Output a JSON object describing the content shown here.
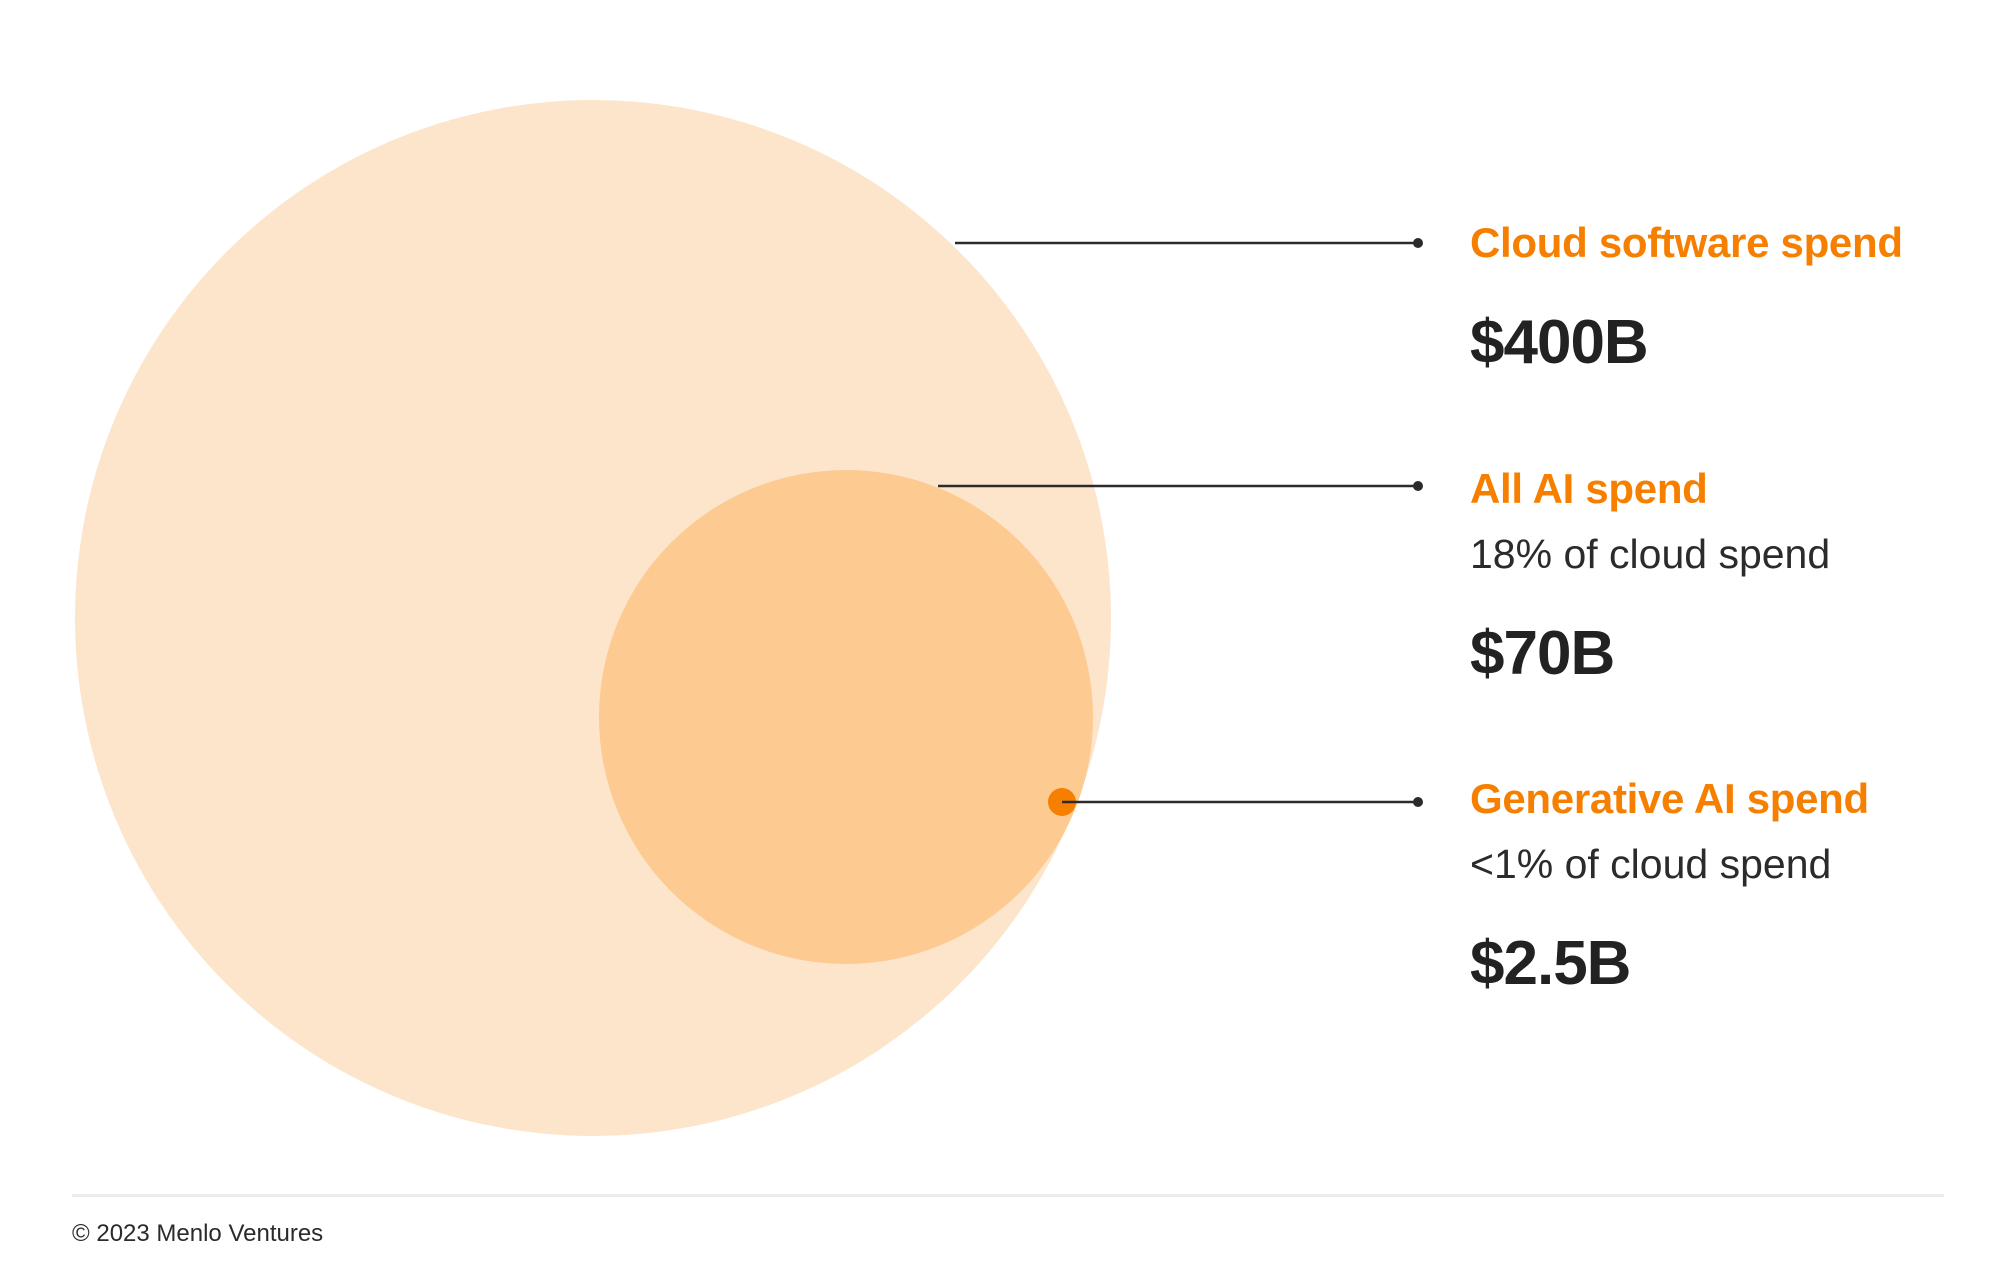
{
  "colors": {
    "accent": "#f77f00",
    "outer_circle": "#fde5cb",
    "inner_circle": "#fdca92",
    "leader_line": "#2b2b2b",
    "value_text": "#222222",
    "divider": "#ececec"
  },
  "chart_data": {
    "type": "nested-circle",
    "series": [
      {
        "name": "Cloud software spend",
        "value_label": "$400B",
        "value": 400,
        "unit": "B USD",
        "share_label": ""
      },
      {
        "name": "All AI spend",
        "value_label": "$70B",
        "value": 70,
        "unit": "B USD",
        "share_label": "18% of cloud spend"
      },
      {
        "name": "Generative AI spend",
        "value_label": "$2.5B",
        "value": 2.5,
        "unit": "B USD",
        "share_label": "<1% of cloud spend"
      }
    ]
  },
  "footer": {
    "copyright": "© 2023 Menlo Ventures"
  }
}
